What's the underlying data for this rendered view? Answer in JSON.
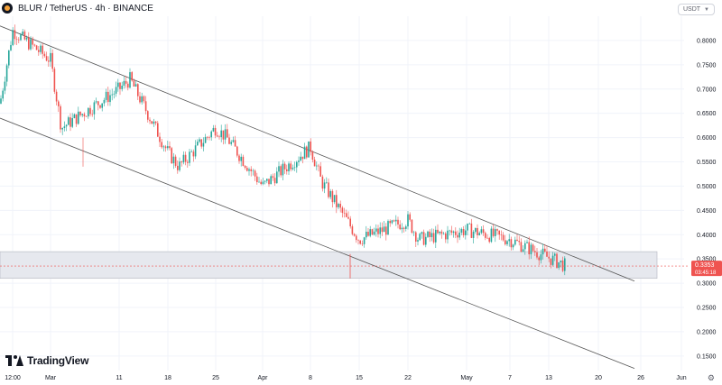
{
  "header": {
    "symbol_title": "BLUR / TetherUS · 4h · BINANCE",
    "currency": "USDT"
  },
  "price_labels": {
    "last_price": "0.3353",
    "countdown": "03:45:18"
  },
  "branding": {
    "name": "TradingView"
  },
  "colors": {
    "up": "#26a69a",
    "down": "#ef5350",
    "channel": "#555555",
    "zone_fill": "#e6e8ee",
    "zone_border": "#b2b5be",
    "price_badge": "#ef5350"
  },
  "chart_data": {
    "type": "candlestick",
    "timeframe": "4h",
    "exchange": "BINANCE",
    "pair": "BLUR / TetherUS",
    "ylim": [
      0.12,
      0.85
    ],
    "y_ticks": [
      0.15,
      0.2,
      0.25,
      0.3,
      0.35,
      0.4,
      0.45,
      0.5,
      0.55,
      0.6,
      0.65,
      0.7,
      0.75,
      0.8
    ],
    "y_tick_labels": [
      "0.1500",
      "0.2000",
      "0.2500",
      "0.3000",
      "0.3500",
      "0.4000",
      "0.4500",
      "0.5000",
      "0.5500",
      "0.6000",
      "0.6500",
      "0.7000",
      "0.7500",
      "0.8000"
    ],
    "x_ticks": [
      "12:00",
      "Mar",
      "11",
      "18",
      "25",
      "Apr",
      "8",
      "15",
      "22",
      "May",
      "7",
      "13",
      "20",
      "26",
      "Jun"
    ],
    "last_price": 0.3353,
    "support_zone": [
      0.31,
      0.365
    ],
    "channel_upper": [
      {
        "x": "12:00",
        "y": 0.83
      },
      {
        "x": "20",
        "y": 0.31
      }
    ],
    "channel_lower": [
      {
        "x": "12:00",
        "y": 0.64
      },
      {
        "x": "20",
        "y": 0.13
      }
    ],
    "price_path": [
      {
        "x": "12:00",
        "y": 0.67
      },
      {
        "x": "12:00",
        "y": 0.82
      },
      {
        "x": "Mar",
        "y": 0.76
      },
      {
        "x": "Mar",
        "y": 0.62
      },
      {
        "x": "11",
        "y": 0.7
      },
      {
        "x": "11",
        "y": 0.72
      },
      {
        "x": "18",
        "y": 0.57
      },
      {
        "x": "18",
        "y": 0.54
      },
      {
        "x": "25",
        "y": 0.62
      },
      {
        "x": "25",
        "y": 0.6
      },
      {
        "x": "Apr",
        "y": 0.5
      },
      {
        "x": "8",
        "y": 0.58
      },
      {
        "x": "8",
        "y": 0.51
      },
      {
        "x": "15",
        "y": 0.39
      },
      {
        "x": "22",
        "y": 0.43
      },
      {
        "x": "22",
        "y": 0.39
      },
      {
        "x": "May",
        "y": 0.41
      },
      {
        "x": "7",
        "y": 0.39
      },
      {
        "x": "13",
        "y": 0.335
      }
    ]
  }
}
